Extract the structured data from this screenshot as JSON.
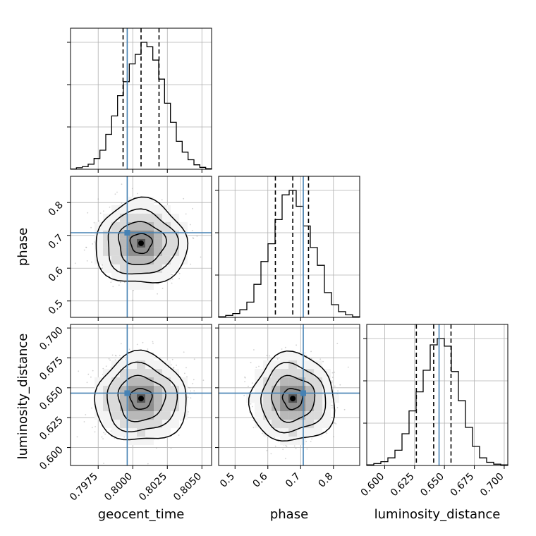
{
  "chart_data": {
    "type": "corner",
    "title": "",
    "parameters": [
      "geocent_time",
      "phase",
      "luminosity_distance"
    ],
    "truths": {
      "geocent_time": 0.7996,
      "phase": 0.708,
      "luminosity_distance": 0.6455
    },
    "quantiles": {
      "geocent_time": [
        0.7993,
        0.8006,
        0.8019
      ],
      "phase": [
        0.623,
        0.676,
        0.724
      ],
      "luminosity_distance": [
        0.6265,
        0.641,
        0.6555
      ]
    },
    "ranges": {
      "geocent_time": [
        0.7955,
        0.8057
      ],
      "phase": [
        0.45,
        0.88
      ],
      "luminosity_distance": [
        0.585,
        0.703
      ]
    },
    "ticks": {
      "geocent_time": {
        "values": [
          0.7975,
          0.8,
          0.8025,
          0.805
        ],
        "labels": [
          "0.7975",
          "0.8000",
          "0.8025",
          "0.8050"
        ]
      },
      "phase": {
        "values": [
          0.5,
          0.6,
          0.7,
          0.8
        ],
        "labels": [
          "0.5",
          "0.6",
          "0.7",
          "0.8"
        ]
      },
      "luminosity_distance": {
        "values": [
          0.6,
          0.625,
          0.65,
          0.675,
          0.7
        ],
        "labels": [
          "0.600",
          "0.625",
          "0.650",
          "0.675",
          "0.700"
        ]
      }
    },
    "histograms": {
      "geocent_time": [
        0.2,
        1.2,
        2.0,
        4.0,
        8.5,
        15.0,
        27.5,
        42.0,
        58.0,
        69.0,
        83.0,
        90.5,
        100.0,
        96.5,
        86.0,
        71.0,
        52.0,
        37.0,
        22.0,
        13.5,
        7.5,
        3.5,
        1.5,
        0.5
      ],
      "phase": [
        0.5,
        1.5,
        3.0,
        6.0,
        12.0,
        26.0,
        44.0,
        58.0,
        77.0,
        96.5,
        100.0,
        87.5,
        72.0,
        55.0,
        41.0,
        19.5,
        10.0,
        4.5,
        2.0,
        0.5
      ],
      "luminosity_distance": [
        0.5,
        1.5,
        3.0,
        6.0,
        12.0,
        25.0,
        43.0,
        58.0,
        75.0,
        95.0,
        100.0,
        94.0,
        74.0,
        51.0,
        30.0,
        15.0,
        6.0,
        2.5,
        1.0,
        0.5
      ]
    },
    "grid": true,
    "colors": {
      "truth": "#4682b4",
      "hist": "#000000",
      "contour": "#000000",
      "scatter": "#9a9a9a",
      "grid": "#b0b0b0"
    },
    "xlabels": [
      "geocent_time",
      "phase",
      "luminosity_distance"
    ],
    "ylabels": [
      "",
      "phase",
      "luminosity_distance"
    ]
  }
}
